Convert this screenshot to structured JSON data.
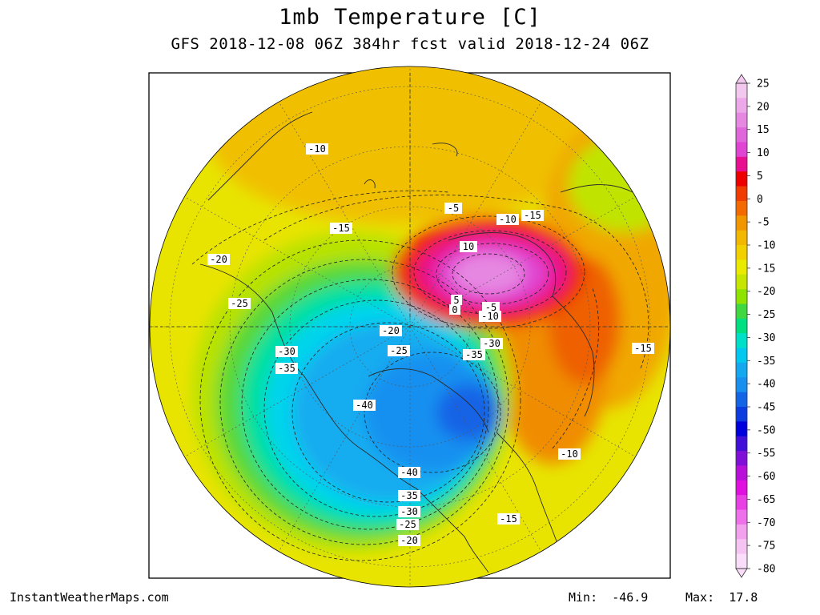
{
  "header": {
    "title": "1mb Temperature [C]",
    "subtitle": "GFS 2018-12-08 06Z 384hr fcst valid 2018-12-24 06Z"
  },
  "footer": {
    "source": "InstantWeatherMaps.com",
    "min_label": "Min:",
    "min_value": "-46.9",
    "max_label": "Max:",
    "max_value": "17.8"
  },
  "colorbar": {
    "ticks": [
      "25",
      "20",
      "15",
      "10",
      "5",
      "0",
      "-5",
      "-10",
      "-15",
      "-20",
      "-25",
      "-30",
      "-35",
      "-40",
      "-45",
      "-50",
      "-55",
      "-60",
      "-65",
      "-70",
      "-75",
      "-80"
    ],
    "colors": [
      "#f2c8ee",
      "#eca8e8",
      "#e688e2",
      "#e066dc",
      "#e044d2",
      "#e81090",
      "#ee0000",
      "#f03c00",
      "#f26a00",
      "#f29600",
      "#f2b800",
      "#f2d000",
      "#eaea00",
      "#c6e600",
      "#8ee400",
      "#40d840",
      "#00e080",
      "#00e0c8",
      "#00c8f0",
      "#14a8f0",
      "#1890f0",
      "#1464e6",
      "#0c3ce0",
      "#0000dc",
      "#4010d8",
      "#8010d8",
      "#b810d8",
      "#e010e0",
      "#e840e4",
      "#ee70ea",
      "#f3a0ef",
      "#f6c4f3",
      "#faddf8"
    ]
  },
  "map": {
    "contour_labels": [
      {
        "text": "-10",
        "name": "contour-label-m10-northwest"
      },
      {
        "text": "-15",
        "name": "contour-label-m15-west"
      },
      {
        "text": "-20",
        "name": "contour-label-m20-far-west"
      },
      {
        "text": "-25",
        "name": "contour-label-m25-west"
      },
      {
        "text": "-30",
        "name": "contour-label-m30-west"
      },
      {
        "text": "-35",
        "name": "contour-label-m35-west"
      },
      {
        "text": "-40",
        "name": "contour-label-m40-center"
      },
      {
        "text": "-20",
        "name": "contour-label-m20-center"
      },
      {
        "text": "-25",
        "name": "contour-label-m25-center"
      },
      {
        "text": "-5",
        "name": "contour-label-m5-north"
      },
      {
        "text": "-10",
        "name": "contour-label-m10-north"
      },
      {
        "text": "-15",
        "name": "contour-label-m15-northeast"
      },
      {
        "text": "10",
        "name": "contour-label-10-warm-core"
      },
      {
        "text": "5",
        "name": "contour-label-5-warm-edge"
      },
      {
        "text": "0",
        "name": "contour-label-0-warm-edge"
      },
      {
        "text": "-5",
        "name": "contour-label-m5-east"
      },
      {
        "text": "-10",
        "name": "contour-label-m10-east"
      },
      {
        "text": "-30",
        "name": "contour-label-m30-center"
      },
      {
        "text": "-35",
        "name": "contour-label-m35-center"
      },
      {
        "text": "-15",
        "name": "contour-label-m15-east"
      },
      {
        "text": "-10",
        "name": "contour-label-m10-southeast"
      },
      {
        "text": "-40",
        "name": "contour-label-m40-south"
      },
      {
        "text": "-35",
        "name": "contour-label-m35-south"
      },
      {
        "text": "-30",
        "name": "contour-label-m30-south"
      },
      {
        "text": "-25",
        "name": "contour-label-m25-south"
      },
      {
        "text": "-20",
        "name": "contour-label-m20-south"
      },
      {
        "text": "-15",
        "name": "contour-label-m15-southeast"
      }
    ]
  }
}
